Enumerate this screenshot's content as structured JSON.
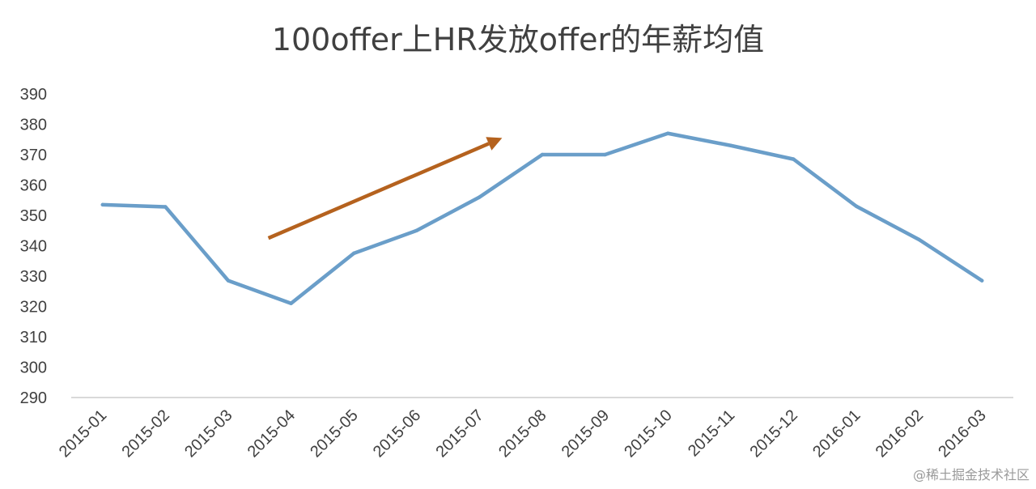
{
  "chart_data": {
    "type": "line",
    "title": "100offer上HR发放offer的年薪均值",
    "xlabel": "",
    "ylabel": "",
    "categories": [
      "2015-01",
      "2015-02",
      "2015-03",
      "2015-04",
      "2015-05",
      "2015-06",
      "2015-07",
      "2015-08",
      "2015-09",
      "2015-10",
      "2015-11",
      "2015-12",
      "2016-01",
      "2016-02",
      "2016-03"
    ],
    "series": [
      {
        "values": [
          353.5,
          352.8,
          328.5,
          321,
          337.5,
          345,
          356,
          370,
          370,
          377,
          373,
          368.5,
          353,
          342,
          328.5
        ]
      }
    ],
    "yticks": [
      290,
      300,
      310,
      320,
      330,
      340,
      350,
      360,
      370,
      380,
      390
    ],
    "ylim": [
      290,
      390
    ],
    "grid": false,
    "line_color": "#6a9ec9",
    "annotation": {
      "type": "arrow",
      "color": "#b5621e",
      "direction": "up-right",
      "from": {
        "x": "2015-04",
        "y": 342.5
      },
      "to": {
        "x": "2015-07",
        "y": 375.5
      }
    }
  },
  "watermark": "@稀土掘金技术社区"
}
